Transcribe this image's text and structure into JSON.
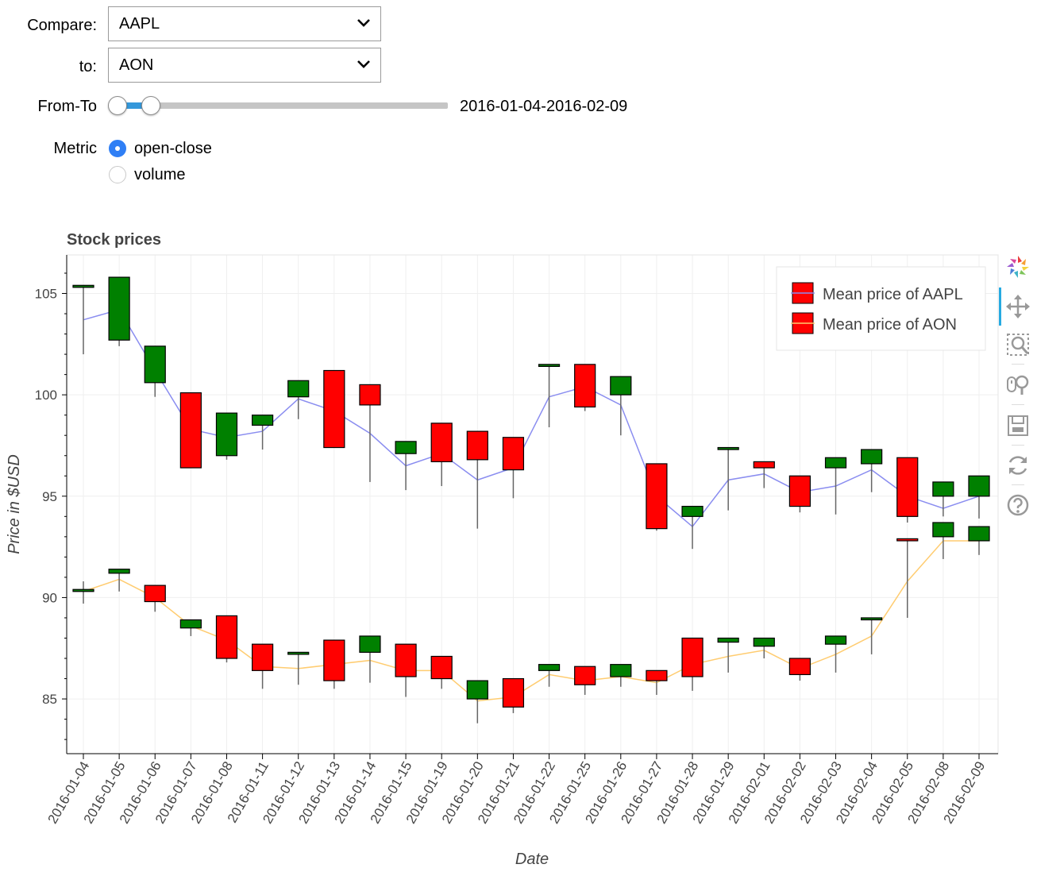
{
  "controls": {
    "compare_label": "Compare:",
    "compare_value": "AAPL",
    "to_label": "to:",
    "to_value": "AON",
    "range_label": "From-To",
    "range_value": "2016-01-04-2016-02-09",
    "range_fraction": [
      0.0,
      0.1
    ],
    "metric_label": "Metric",
    "metric_options": [
      "open-close",
      "volume"
    ],
    "metric_selected": "open-close"
  },
  "toolbar": {
    "tools": [
      "bokeh-logo-icon",
      "pan-icon",
      "box-zoom-icon",
      "wheel-zoom-icon",
      "save-icon",
      "reset-icon",
      "help-icon"
    ]
  },
  "chart_data": {
    "type": "candlestick",
    "title": "Stock prices",
    "xlabel": "Date",
    "ylabel": "Price in $USD",
    "ylim": [
      82.3,
      106.9
    ],
    "yticks": [
      85,
      90,
      95,
      100,
      105
    ],
    "grid": true,
    "legend_position": "top-right",
    "colors": {
      "increase": "#008000",
      "decrease": "#ff0000",
      "aapl_line": "#8a8df0",
      "aon_line": "#ffcc70",
      "wick": "#666666"
    },
    "categories": [
      "2016-01-04",
      "2016-01-05",
      "2016-01-06",
      "2016-01-07",
      "2016-01-08",
      "2016-01-11",
      "2016-01-12",
      "2016-01-13",
      "2016-01-14",
      "2016-01-15",
      "2016-01-19",
      "2016-01-20",
      "2016-01-21",
      "2016-01-22",
      "2016-01-25",
      "2016-01-26",
      "2016-01-27",
      "2016-01-28",
      "2016-01-29",
      "2016-02-01",
      "2016-02-02",
      "2016-02-03",
      "2016-02-04",
      "2016-02-05",
      "2016-02-08",
      "2016-02-09"
    ],
    "series": [
      {
        "name": "Mean price of AAPL",
        "open": [
          105.3,
          102.7,
          100.6,
          100.1,
          97.0,
          98.5,
          99.9,
          101.2,
          100.5,
          97.1,
          98.6,
          98.2,
          97.9,
          101.4,
          101.5,
          100.0,
          96.6,
          94.0,
          97.3,
          96.7,
          96.0,
          96.4,
          96.6,
          96.9,
          95.0,
          95.0
        ],
        "close": [
          105.4,
          105.8,
          102.4,
          96.4,
          99.1,
          99.0,
          100.7,
          97.4,
          99.5,
          97.7,
          96.7,
          96.8,
          96.3,
          101.5,
          99.4,
          100.9,
          93.4,
          94.5,
          97.4,
          96.4,
          94.5,
          96.9,
          97.3,
          94.0,
          95.7,
          96.0
        ],
        "high": [
          105.4,
          105.8,
          102.4,
          100.1,
          99.1,
          99.0,
          100.7,
          101.2,
          100.5,
          97.7,
          98.6,
          98.2,
          97.9,
          101.4,
          101.5,
          100.9,
          96.6,
          94.5,
          97.3,
          96.7,
          96.0,
          96.9,
          97.3,
          96.9,
          95.7,
          96.0
        ],
        "low": [
          102.0,
          102.4,
          99.9,
          96.4,
          96.8,
          97.3,
          98.8,
          97.4,
          95.7,
          95.3,
          95.5,
          93.4,
          94.9,
          98.4,
          99.2,
          98.0,
          93.3,
          92.4,
          94.3,
          95.4,
          94.2,
          94.1,
          95.2,
          93.7,
          94.0,
          93.9
        ],
        "mean": [
          103.7,
          104.2,
          101.2,
          98.3,
          97.9,
          98.2,
          99.8,
          99.2,
          98.1,
          96.5,
          97.1,
          95.8,
          96.4,
          99.9,
          100.4,
          99.5,
          95.0,
          93.5,
          95.8,
          96.1,
          95.2,
          95.5,
          96.3,
          95.0,
          94.4,
          95.0
        ]
      },
      {
        "name": "Mean price of AON",
        "open": [
          90.3,
          91.2,
          90.6,
          88.5,
          89.1,
          87.7,
          87.2,
          87.9,
          87.3,
          87.7,
          87.1,
          85.0,
          86.0,
          86.4,
          86.6,
          86.1,
          86.4,
          88.0,
          87.8,
          87.6,
          87.0,
          87.7,
          88.9,
          92.9,
          93.0,
          92.8
        ],
        "close": [
          90.4,
          91.4,
          89.8,
          88.9,
          87.0,
          86.4,
          87.3,
          85.9,
          88.1,
          86.1,
          86.0,
          85.9,
          84.6,
          86.7,
          85.7,
          86.7,
          85.9,
          86.1,
          88.0,
          88.0,
          86.2,
          88.1,
          89.0,
          92.8,
          93.7,
          93.5
        ],
        "high": [
          90.8,
          91.4,
          90.6,
          88.9,
          89.1,
          87.7,
          87.3,
          87.9,
          88.1,
          87.7,
          87.1,
          85.9,
          86.0,
          86.7,
          86.6,
          86.7,
          86.4,
          88.0,
          88.0,
          88.0,
          87.0,
          88.1,
          89.0,
          92.9,
          93.7,
          93.5
        ],
        "low": [
          89.7,
          90.3,
          89.3,
          88.1,
          86.8,
          85.5,
          85.7,
          85.5,
          85.8,
          85.1,
          85.5,
          83.8,
          84.3,
          85.6,
          85.2,
          85.6,
          85.2,
          85.4,
          86.3,
          87.0,
          85.9,
          86.3,
          87.2,
          89.0,
          91.9,
          92.1
        ],
        "mean": [
          90.3,
          90.9,
          90.0,
          88.6,
          87.9,
          86.6,
          86.5,
          86.7,
          86.9,
          86.4,
          86.4,
          84.9,
          85.1,
          86.2,
          85.9,
          86.1,
          85.8,
          86.7,
          87.1,
          87.4,
          86.5,
          87.2,
          88.1,
          90.8,
          92.8,
          92.8
        ]
      }
    ]
  }
}
